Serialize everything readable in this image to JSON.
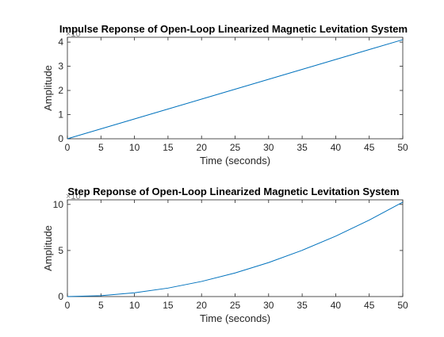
{
  "chart_data": [
    {
      "type": "line",
      "title": "Impulse Reponse of Open-Loop Linearized Magnetic Levitation System",
      "xlabel": "Time (seconds)",
      "ylabel": "Amplitude",
      "exponent_label": "×10",
      "xlim": [
        0,
        50
      ],
      "ylim": [
        0,
        4.2
      ],
      "xticks": [
        0,
        5,
        10,
        15,
        20,
        25,
        30,
        35,
        40,
        45,
        50
      ],
      "yticks": [
        0,
        1,
        2,
        3,
        4
      ],
      "grid": false,
      "series_color": "#0072BD",
      "x": [
        0,
        5,
        10,
        15,
        20,
        25,
        30,
        35,
        40,
        45,
        50
      ],
      "y": [
        0,
        0.41,
        0.82,
        1.23,
        1.64,
        2.05,
        2.46,
        2.87,
        3.28,
        3.69,
        4.1
      ]
    },
    {
      "type": "line",
      "title": "Step Reponse of Open-Loop Linearized Magnetic Levitation System",
      "xlabel": "Time (seconds)",
      "ylabel": "Amplitude",
      "exponent_label": "×10",
      "xlim": [
        0,
        50
      ],
      "ylim": [
        0,
        10.5
      ],
      "xticks": [
        0,
        5,
        10,
        15,
        20,
        25,
        30,
        35,
        40,
        45,
        50
      ],
      "yticks": [
        0,
        5,
        10
      ],
      "grid": false,
      "series_color": "#0072BD",
      "x": [
        0,
        5,
        10,
        15,
        20,
        25,
        30,
        35,
        40,
        45,
        50
      ],
      "y": [
        0,
        0.1,
        0.41,
        0.92,
        1.64,
        2.56,
        3.69,
        5.02,
        6.56,
        8.3,
        10.25
      ]
    }
  ]
}
